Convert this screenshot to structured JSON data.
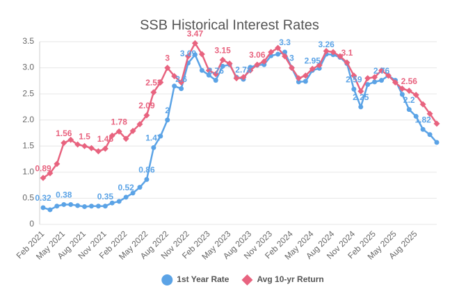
{
  "chart_data": {
    "type": "line",
    "title": "SSB Historical Interest Rates",
    "categories": [
      "Feb 2021",
      null,
      null,
      "May 2021",
      null,
      null,
      "Aug 2021",
      null,
      null,
      "Nov 2021",
      null,
      null,
      "Feb 2022",
      null,
      null,
      "May 2022",
      null,
      null,
      "Aug 2022",
      null,
      null,
      "Nov 2022",
      null,
      null,
      "Feb 2023",
      null,
      null,
      "May 2023",
      null,
      null,
      "Aug 2023",
      null,
      null,
      "Nov 2023",
      null,
      null,
      "Feb 2024",
      null,
      null,
      "May 2024",
      null,
      null,
      "Aug 2024",
      null,
      null,
      "Nov 2024",
      null,
      null,
      "Feb 2025",
      null,
      null,
      "May 2025",
      null,
      null,
      "Aug 2025",
      null,
      null,
      null
    ],
    "series": [
      {
        "name": "1st Year Rate",
        "color": "#5ba3e6",
        "marker": "circle",
        "values": [
          0.32,
          0.28,
          0.35,
          0.38,
          0.38,
          0.36,
          0.34,
          0.35,
          0.35,
          0.35,
          0.41,
          0.44,
          0.52,
          0.6,
          0.71,
          0.86,
          1.47,
          1.69,
          2.0,
          2.65,
          2.6,
          3.09,
          3.25,
          2.95,
          2.86,
          2.76,
          3.03,
          3.06,
          2.82,
          2.78,
          3.01,
          3.05,
          3.06,
          3.23,
          3.26,
          3.3,
          3.0,
          2.73,
          2.74,
          2.95,
          2.99,
          3.26,
          3.25,
          3.2,
          3.08,
          2.59,
          2.25,
          2.68,
          2.73,
          2.76,
          2.85,
          2.76,
          2.49,
          2.2,
          2.07,
          1.82,
          1.72,
          1.57
        ],
        "value_labels": [
          "0.32",
          null,
          null,
          "0.38",
          null,
          null,
          null,
          null,
          null,
          "0.35",
          null,
          null,
          "0.52",
          null,
          null,
          "0.86",
          "1.47",
          null,
          "2",
          null,
          "2.6",
          "3.09",
          null,
          null,
          null,
          "2.76",
          null,
          null,
          null,
          "2.78",
          null,
          null,
          null,
          null,
          null,
          "3.3",
          "3",
          null,
          null,
          "2.95",
          null,
          "3.26",
          null,
          null,
          null,
          "2.59",
          "2.25",
          null,
          null,
          "2.76",
          null,
          null,
          null,
          "2.2",
          null,
          "1.82",
          null,
          null
        ]
      },
      {
        "name": "Avg 10-yr Return",
        "color": "#e8637f",
        "marker": "diamond",
        "values": [
          0.89,
          0.98,
          1.16,
          1.56,
          1.62,
          1.53,
          1.5,
          1.46,
          1.4,
          1.45,
          1.7,
          1.78,
          1.64,
          1.79,
          1.92,
          2.09,
          2.53,
          2.72,
          3.0,
          2.84,
          2.72,
          3.22,
          3.47,
          3.26,
          2.95,
          2.88,
          3.15,
          3.08,
          2.8,
          2.82,
          2.95,
          3.06,
          3.12,
          3.3,
          3.38,
          3.22,
          3.0,
          2.8,
          2.85,
          2.98,
          3.05,
          3.32,
          3.3,
          3.22,
          3.1,
          2.85,
          2.55,
          2.8,
          2.82,
          2.95,
          2.85,
          2.72,
          2.6,
          2.56,
          2.48,
          2.3,
          2.12,
          1.93
        ],
        "value_labels": [
          "0.89",
          null,
          null,
          "1.56",
          null,
          null,
          "1.5",
          null,
          null,
          "1.45",
          null,
          "1.78",
          null,
          null,
          null,
          "2.09",
          "2.53",
          null,
          "3",
          null,
          null,
          null,
          "3.47",
          null,
          null,
          null,
          "3.15",
          null,
          null,
          null,
          null,
          "3.06",
          null,
          null,
          null,
          null,
          null,
          null,
          null,
          null,
          null,
          null,
          null,
          null,
          "3.1",
          null,
          null,
          null,
          null,
          null,
          null,
          null,
          null,
          "2.56",
          null,
          null,
          null,
          null
        ]
      }
    ],
    "ylim": [
      0,
      3.5
    ],
    "yticks": [
      0,
      0.5,
      {
        "value": 1,
        "label": "1.0"
      },
      1.5,
      {
        "value": 2,
        "label": "2.0"
      },
      2.5,
      {
        "value": 3,
        "label": "3.0"
      },
      3.5
    ],
    "grid": true,
    "legend": "bottom"
  }
}
